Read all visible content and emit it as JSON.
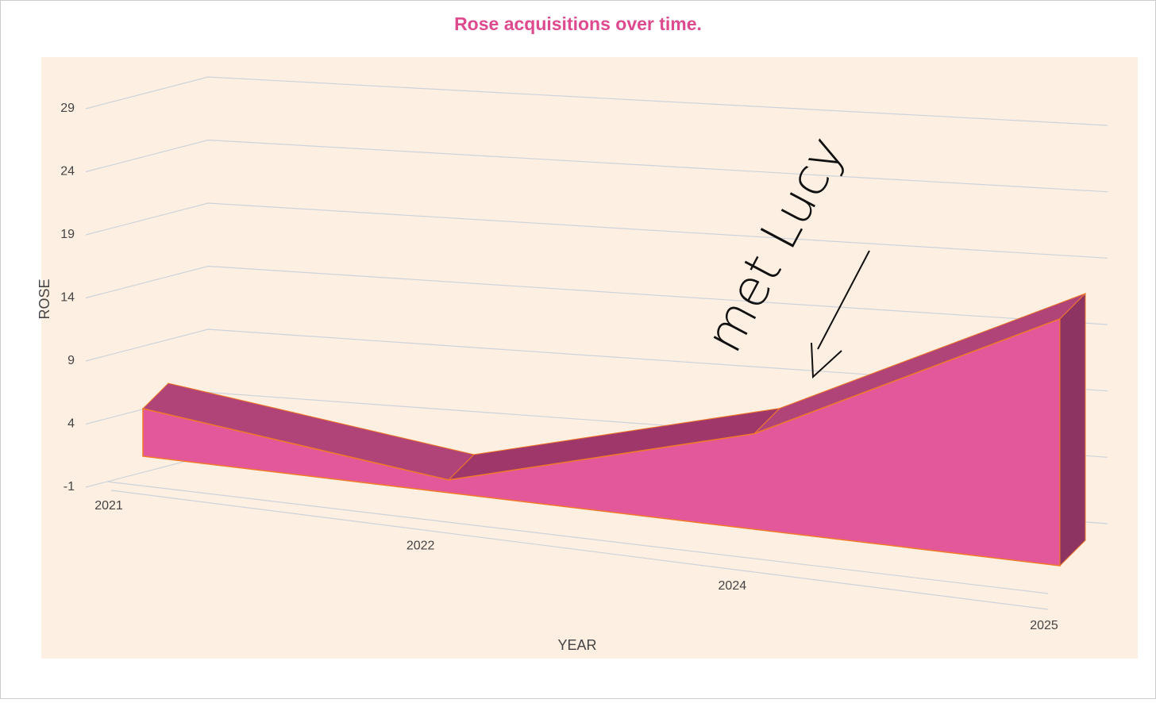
{
  "chart_data": {
    "type": "area3d",
    "title": "Rose acquisitions over time.",
    "x_label": "YEAR",
    "y_label": "ROSE",
    "categories": [
      "2021",
      "2022",
      "2024",
      "2025"
    ],
    "values": [
      3,
      0,
      6,
      16
    ],
    "color": "#e3589a",
    "ylim": [
      -1,
      29
    ],
    "yticks": [
      -1,
      4,
      9,
      14,
      19,
      24,
      29
    ],
    "grid": true,
    "annotation": "met Lucy"
  }
}
